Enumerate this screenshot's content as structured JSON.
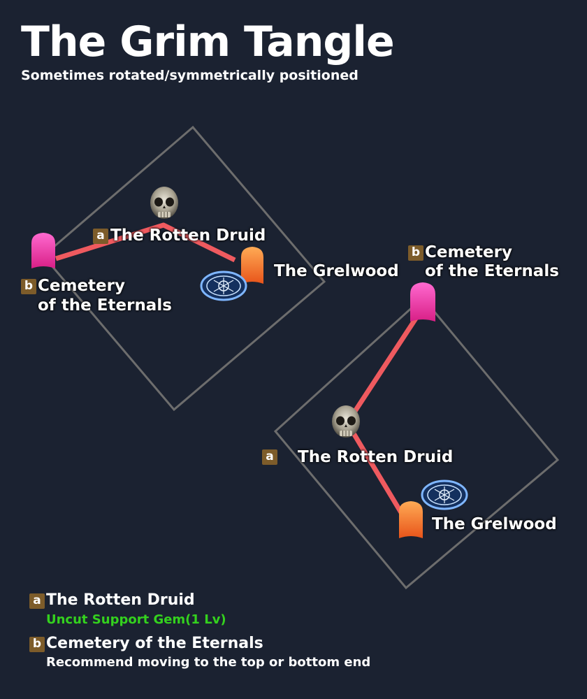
{
  "header": {
    "title": "The Grim Tangle",
    "subtitle": "Sometimes rotated/symmetrically positioned"
  },
  "colors": {
    "background": "#1b2231",
    "path": "#ef5a5f",
    "map_outline": "#6d6d6d",
    "badge": "#7d5c2a",
    "reward": "#34d11e",
    "waypoint_pink": "#ef3fa0",
    "waypoint_orange": "#f06b25",
    "waypoint_portal": "#3d7de0"
  },
  "layout_a": {
    "boss": {
      "badge": "a",
      "label": "The Rotten Druid",
      "icon": "skull-icon"
    },
    "exit": {
      "label": "The Grelwood",
      "icon": "orange-waypoint-icon"
    },
    "target": {
      "badge": "b",
      "line1": "Cemetery",
      "line2": "of the Eternals",
      "icon": "pink-waypoint-icon"
    },
    "portal": {
      "icon": "waypoint-portal-icon"
    }
  },
  "layout_b": {
    "boss": {
      "badge": "a",
      "label": "The Rotten Druid",
      "icon": "skull-icon"
    },
    "exit": {
      "label": "The Grelwood",
      "icon": "orange-waypoint-icon"
    },
    "target": {
      "badge": "b",
      "line1": "Cemetery",
      "line2": "of the Eternals",
      "icon": "pink-waypoint-icon"
    },
    "portal": {
      "icon": "waypoint-portal-icon"
    }
  },
  "legend": [
    {
      "badge": "a",
      "title": "The Rotten Druid",
      "detail": "Uncut Support Gem(1 Lv)"
    },
    {
      "badge": "b",
      "title": "Cemetery of the Eternals",
      "detail": "Recommend moving to the top or bottom end"
    }
  ]
}
